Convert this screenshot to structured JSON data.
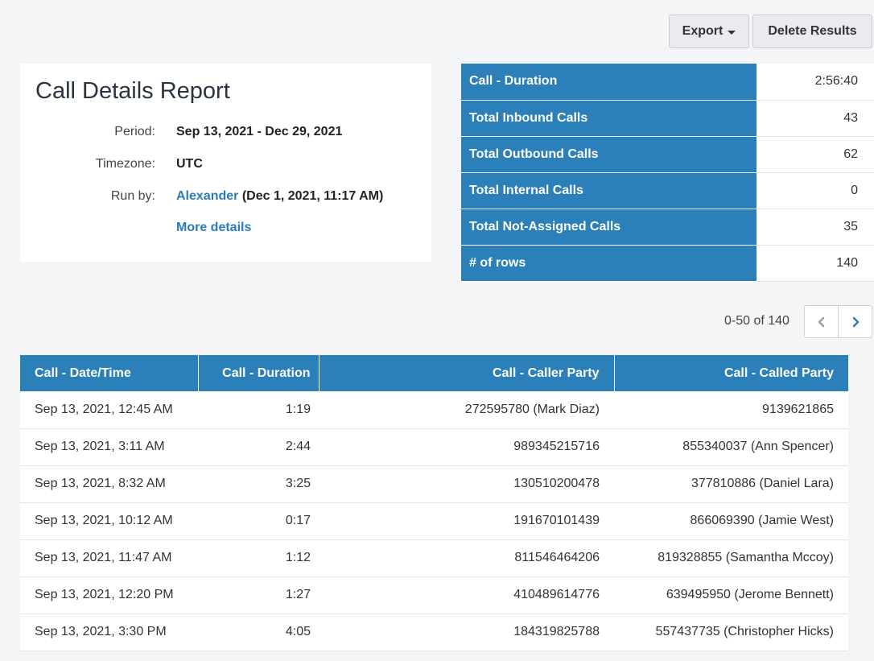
{
  "toolbar": {
    "export_label": "Export",
    "delete_label": "Delete Results"
  },
  "report": {
    "title": "Call Details Report",
    "period_label": "Period:",
    "period_value": "Sep 13, 2021 - Dec 29, 2021",
    "timezone_label": "Timezone:",
    "timezone_value": "UTC",
    "runby_label": "Run by:",
    "runby_user": "Alexander",
    "runby_time": "(Dec 1, 2021, 11:17 AM)",
    "more_details": "More details"
  },
  "summary": [
    {
      "label": "Call - Duration",
      "value": "2:56:40"
    },
    {
      "label": "Total Inbound Calls",
      "value": "43"
    },
    {
      "label": "Total Outbound Calls",
      "value": "62"
    },
    {
      "label": "Total Internal Calls",
      "value": "0"
    },
    {
      "label": "Total Not-Assigned Calls",
      "value": "35"
    },
    {
      "label": "# of rows",
      "value": "140"
    }
  ],
  "pagination": {
    "text": "0-50 of 140",
    "prev_icon": "chevron-left-icon",
    "next_icon": "chevron-right-icon",
    "accent": "#2b7bba"
  },
  "table": {
    "headers": [
      "Call - Date/Time",
      "Call - Duration",
      "Call - Caller Party",
      "Call - Called Party"
    ],
    "rows": [
      [
        "Sep 13, 2021, 12:45 AM",
        "1:19",
        "272595780 (Mark Diaz)",
        "9139621865"
      ],
      [
        "Sep 13, 2021, 3:11 AM",
        "2:44",
        "989345215716",
        "855340037 (Ann Spencer)"
      ],
      [
        "Sep 13, 2021, 8:32 AM",
        "3:25",
        "130510200478",
        "377810886 (Daniel Lara)"
      ],
      [
        "Sep 13, 2021, 10:12 AM",
        "0:17",
        "191670101439",
        "866069390 (Jamie West)"
      ],
      [
        "Sep 13, 2021, 11:47 AM",
        "1:12",
        "811546464206",
        "819328855 (Samantha Mccoy)"
      ],
      [
        "Sep 13, 2021, 12:20 PM",
        "1:27",
        "410489614776",
        "639495950 (Jerome Bennett)"
      ],
      [
        "Sep 13, 2021, 3:30 PM",
        "4:05",
        "184319825788",
        "557437735 (Christopher Hicks)"
      ]
    ]
  },
  "colors": {
    "header_blue": "#2b80b9",
    "link_blue": "#2b7bba",
    "background": "#f4f5f7"
  }
}
